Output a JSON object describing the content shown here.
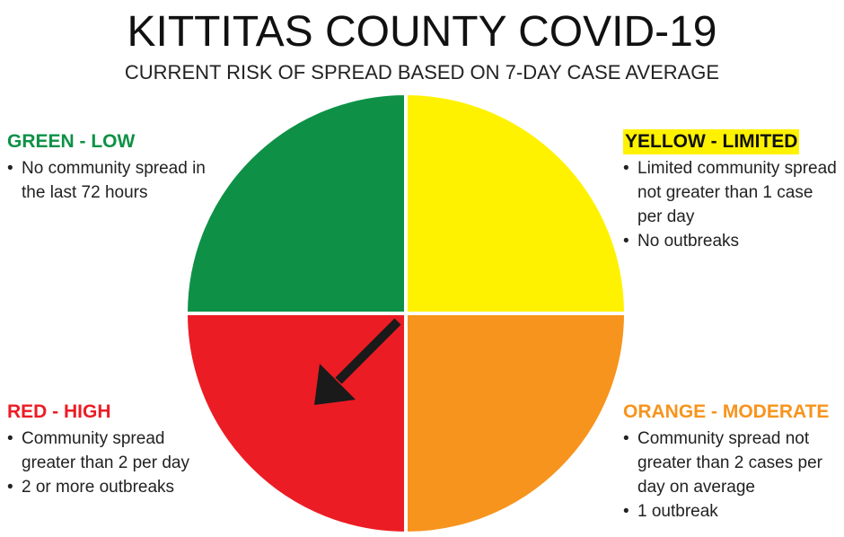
{
  "title": "KITTITAS COUNTY COVID-19",
  "subtitle": "CURRENT RISK OF SPREAD BASED ON 7-DAY CASE AVERAGE",
  "colors": {
    "green": "#0e9146",
    "yellow": "#fff200",
    "red": "#ec1c24",
    "orange": "#f7941d",
    "arrow": "#1a1a1a"
  },
  "indicator": {
    "current_level": "RED - HIGH",
    "icon": "arrow-down-left-icon"
  },
  "levels": {
    "green": {
      "heading": "GREEN - LOW",
      "bullets": [
        "No community spread in the last 72 hours"
      ]
    },
    "yellow": {
      "heading": "YELLOW - LIMITED",
      "bullets": [
        "Limited community spread not greater than 1 case per day",
        "No outbreaks"
      ]
    },
    "red": {
      "heading": "RED - HIGH",
      "bullets": [
        "Community spread greater than 2 per day",
        "2 or more outbreaks"
      ]
    },
    "orange": {
      "heading": "ORANGE - MODERATE",
      "bullets": [
        "Community spread not greater than 2 cases per day on average",
        "1 outbreak"
      ]
    }
  }
}
